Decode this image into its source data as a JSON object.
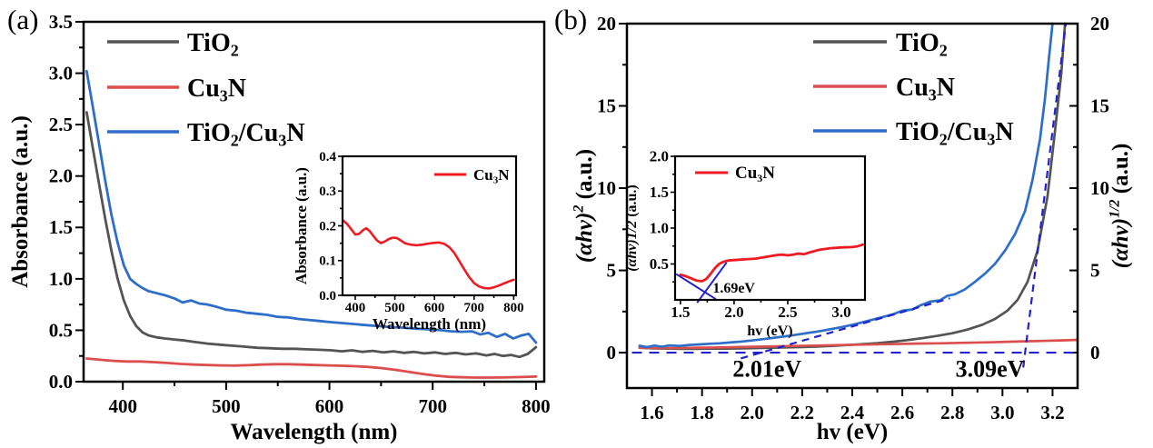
{
  "figure": {
    "panel_a_tag": "(a)",
    "panel_b_tag": "(b)"
  },
  "colors": {
    "tio2": "#545454",
    "cu3n": "#da4f4d",
    "tio2_cu3n": "#2e6ec9",
    "inset_red": "#ee1c22",
    "guide": "#2222cd",
    "axis": "#000000"
  },
  "chart_data": [
    {
      "id": "a_main",
      "type": "line",
      "xlabel": "Wavelength (nm)",
      "ylabel": "Absorbance (a.u.)",
      "xlim": [
        362,
        808
      ],
      "ylim": [
        0,
        3.5
      ],
      "xtick_labels": [
        "400",
        "500",
        "600",
        "700",
        "800"
      ],
      "ytick_labels": [
        "0.0",
        "0.5",
        "1.0",
        "1.5",
        "2.0",
        "2.5",
        "3.0",
        "3.5"
      ],
      "legend": [
        {
          "label": "TiO2",
          "color": "tio2",
          "parts": [
            {
              "t": "TiO"
            },
            {
              "t": "2",
              "s": "sub"
            }
          ]
        },
        {
          "label": "Cu3N",
          "color": "cu3n",
          "parts": [
            {
              "t": "Cu"
            },
            {
              "t": "3",
              "s": "sub"
            },
            {
              "t": "N"
            }
          ]
        },
        {
          "label": "TiO2/Cu3N",
          "color": "tio2_cu3n",
          "parts": [
            {
              "t": "TiO"
            },
            {
              "t": "2",
              "s": "sub"
            },
            {
              "t": "/Cu"
            },
            {
              "t": "3",
              "s": "sub"
            },
            {
              "t": "N"
            }
          ]
        }
      ],
      "series": [
        {
          "name": "TiO2",
          "color": "tio2",
          "x": [
            365,
            371,
            377,
            383,
            389,
            395,
            401,
            407,
            413,
            419,
            425,
            433,
            441,
            450,
            460,
            470,
            482,
            494,
            506,
            518,
            530,
            542,
            554,
            566,
            578,
            590,
            602,
            612,
            622,
            632,
            642,
            652,
            662,
            672,
            682,
            692,
            702,
            712,
            722,
            732,
            742,
            752,
            760,
            768,
            776,
            784,
            792,
            800
          ],
          "y": [
            2.62,
            2.27,
            1.92,
            1.58,
            1.27,
            1.0,
            0.79,
            0.64,
            0.54,
            0.48,
            0.45,
            0.43,
            0.42,
            0.41,
            0.4,
            0.385,
            0.37,
            0.36,
            0.35,
            0.34,
            0.33,
            0.325,
            0.32,
            0.32,
            0.315,
            0.31,
            0.305,
            0.295,
            0.305,
            0.29,
            0.3,
            0.285,
            0.295,
            0.28,
            0.29,
            0.275,
            0.285,
            0.27,
            0.28,
            0.265,
            0.275,
            0.255,
            0.27,
            0.25,
            0.26,
            0.24,
            0.27,
            0.335
          ]
        },
        {
          "name": "Cu3N",
          "color": "cu3n",
          "x": [
            365,
            378,
            391,
            404,
            417,
            430,
            443,
            456,
            469,
            482,
            495,
            508,
            521,
            534,
            547,
            560,
            573,
            586,
            599,
            612,
            625,
            638,
            651,
            664,
            677,
            690,
            703,
            716,
            729,
            742,
            755,
            768,
            781,
            794,
            800
          ],
          "y": [
            0.225,
            0.213,
            0.202,
            0.196,
            0.196,
            0.19,
            0.182,
            0.172,
            0.166,
            0.162,
            0.158,
            0.156,
            0.16,
            0.166,
            0.17,
            0.17,
            0.166,
            0.162,
            0.158,
            0.155,
            0.15,
            0.143,
            0.132,
            0.115,
            0.095,
            0.075,
            0.058,
            0.047,
            0.042,
            0.04,
            0.04,
            0.041,
            0.044,
            0.048,
            0.05
          ]
        },
        {
          "name": "TiO2/Cu3N",
          "color": "tio2_cu3n",
          "x": [
            365,
            371,
            377,
            383,
            389,
            395,
            401,
            407,
            413,
            419,
            425,
            433,
            441,
            450,
            458,
            466,
            474,
            482,
            490,
            500,
            510,
            520,
            530,
            540,
            550,
            560,
            570,
            580,
            590,
            600,
            612,
            624,
            636,
            648,
            660,
            672,
            684,
            696,
            708,
            718,
            728,
            738,
            746,
            754,
            762,
            770,
            778,
            786,
            793,
            800
          ],
          "y": [
            3.02,
            2.67,
            2.31,
            1.95,
            1.62,
            1.35,
            1.13,
            1.0,
            0.95,
            0.91,
            0.88,
            0.86,
            0.84,
            0.81,
            0.77,
            0.79,
            0.76,
            0.75,
            0.73,
            0.7,
            0.69,
            0.67,
            0.66,
            0.65,
            0.63,
            0.625,
            0.61,
            0.6,
            0.59,
            0.58,
            0.57,
            0.56,
            0.55,
            0.54,
            0.53,
            0.525,
            0.515,
            0.51,
            0.5,
            0.49,
            0.485,
            0.49,
            0.46,
            0.475,
            0.435,
            0.465,
            0.42,
            0.45,
            0.465,
            0.38
          ]
        }
      ]
    },
    {
      "id": "a_inset",
      "type": "line",
      "xlabel": "Wavelength (nm)",
      "ylabel": "Absorbance (a.u.)",
      "xlim": [
        368,
        806
      ],
      "ylim": [
        0,
        0.4
      ],
      "xtick_labels": [
        "400",
        "500",
        "600",
        "700",
        "800"
      ],
      "ytick_labels": [
        "0.0",
        "0.1",
        "0.2",
        "0.3",
        "0.4"
      ],
      "legend": [
        {
          "label": "Cu3N",
          "color": "inset_red",
          "parts": [
            {
              "t": "Cu"
            },
            {
              "t": "3",
              "s": "sub"
            },
            {
              "t": "N"
            }
          ]
        }
      ],
      "series": [
        {
          "name": "Cu3N",
          "color": "inset_red",
          "x": [
            370,
            380,
            390,
            400,
            410,
            420,
            428,
            436,
            445,
            455,
            465,
            475,
            485,
            495,
            505,
            515,
            525,
            540,
            555,
            570,
            585,
            600,
            612,
            625,
            638,
            650,
            662,
            675,
            688,
            700,
            712,
            725,
            738,
            750,
            762,
            775,
            788,
            800
          ],
          "y": [
            0.215,
            0.205,
            0.19,
            0.175,
            0.177,
            0.188,
            0.193,
            0.185,
            0.172,
            0.158,
            0.15,
            0.155,
            0.162,
            0.166,
            0.165,
            0.158,
            0.15,
            0.146,
            0.144,
            0.146,
            0.149,
            0.151,
            0.152,
            0.148,
            0.138,
            0.122,
            0.1,
            0.075,
            0.052,
            0.035,
            0.026,
            0.021,
            0.02,
            0.023,
            0.028,
            0.034,
            0.04,
            0.045
          ]
        }
      ]
    },
    {
      "id": "b_main",
      "type": "line",
      "xlabel": "hv (eV)",
      "ylabel": "(αhv)2 (a.u.)",
      "ylabel_parts": [
        {
          "t": "(αhv)",
          "s": "i"
        },
        {
          "t": "2",
          "s": "i sup"
        },
        {
          "t": " (a.u.)"
        }
      ],
      "ylabel_right": "(αhv)1/2 (a.u.)",
      "ylabel_right_parts": [
        {
          "t": "(αhv)",
          "s": "i"
        },
        {
          "t": "1/2",
          "s": "i sup"
        },
        {
          "t": " (a.u.)"
        }
      ],
      "xlim": [
        1.5,
        3.3
      ],
      "ylim": [
        0,
        20
      ],
      "xtick_labels": [
        "1.6",
        "1.8",
        "2.0",
        "2.2",
        "2.4",
        "2.6",
        "2.8",
        "3.0",
        "3.2"
      ],
      "ytick_labels": [
        "0",
        "5",
        "10",
        "15",
        "20"
      ],
      "ytick_labels_right": [
        "0",
        "5",
        "10",
        "15",
        "20"
      ],
      "legend": [
        {
          "label": "TiO2",
          "color": "tio2",
          "parts": [
            {
              "t": "TiO"
            },
            {
              "t": "2",
              "s": "sub"
            }
          ]
        },
        {
          "label": "Cu3N",
          "color": "cu3n",
          "parts": [
            {
              "t": "Cu"
            },
            {
              "t": "3",
              "s": "sub"
            },
            {
              "t": "N"
            }
          ]
        },
        {
          "label": "TiO2/Cu3N",
          "color": "tio2_cu3n",
          "parts": [
            {
              "t": "TiO"
            },
            {
              "t": "2",
              "s": "sub"
            },
            {
              "t": "/Cu"
            },
            {
              "t": "3",
              "s": "sub"
            },
            {
              "t": "N"
            }
          ]
        }
      ],
      "series": [
        {
          "name": "TiO2",
          "color": "tio2",
          "x": [
            1.55,
            1.6,
            1.66,
            1.72,
            1.78,
            1.84,
            1.9,
            1.96,
            2.02,
            2.08,
            2.14,
            2.2,
            2.26,
            2.32,
            2.38,
            2.44,
            2.5,
            2.56,
            2.62,
            2.68,
            2.74,
            2.8,
            2.86,
            2.92,
            2.97,
            3.02,
            3.06,
            3.1,
            3.14,
            3.18,
            3.21,
            3.235,
            3.25
          ],
          "y": [
            0.3,
            0.26,
            0.24,
            0.23,
            0.23,
            0.24,
            0.25,
            0.26,
            0.28,
            0.3,
            0.32,
            0.34,
            0.37,
            0.41,
            0.46,
            0.52,
            0.58,
            0.66,
            0.76,
            0.88,
            1.02,
            1.18,
            1.4,
            1.7,
            2.05,
            2.55,
            3.2,
            4.3,
            6.2,
            9.5,
            13.5,
            17,
            20
          ]
        },
        {
          "name": "Cu3N",
          "color": "cu3n",
          "x": [
            1.55,
            1.65,
            1.75,
            1.85,
            1.95,
            2.05,
            2.15,
            2.25,
            2.35,
            2.45,
            2.55,
            2.65,
            2.75,
            2.85,
            2.95,
            3.05,
            3.15,
            3.25,
            3.3
          ],
          "y": [
            0.29,
            0.27,
            0.29,
            0.31,
            0.34,
            0.37,
            0.4,
            0.43,
            0.46,
            0.49,
            0.52,
            0.55,
            0.57,
            0.6,
            0.63,
            0.67,
            0.71,
            0.75,
            0.78
          ]
        },
        {
          "name": "TiO2/Cu3N",
          "color": "tio2_cu3n",
          "x": [
            1.55,
            1.58,
            1.61,
            1.64,
            1.67,
            1.71,
            1.75,
            1.79,
            1.83,
            1.87,
            1.91,
            1.96,
            2.01,
            2.06,
            2.11,
            2.16,
            2.21,
            2.26,
            2.31,
            2.36,
            2.41,
            2.46,
            2.51,
            2.56,
            2.6,
            2.64,
            2.67,
            2.71,
            2.75,
            2.78,
            2.81,
            2.85,
            2.89,
            2.93,
            2.97,
            3.01,
            3.05,
            3.09,
            3.12,
            3.15,
            3.17,
            3.185,
            3.2
          ],
          "y": [
            0.42,
            0.34,
            0.43,
            0.36,
            0.44,
            0.41,
            0.47,
            0.5,
            0.54,
            0.57,
            0.62,
            0.68,
            0.76,
            0.85,
            0.95,
            1.05,
            1.17,
            1.28,
            1.42,
            1.56,
            1.73,
            1.92,
            2.12,
            2.32,
            2.55,
            2.62,
            2.86,
            3.1,
            3.18,
            3.45,
            3.55,
            3.85,
            4.3,
            4.8,
            5.4,
            6.2,
            7.2,
            8.6,
            10.5,
            13.0,
            15.5,
            17.8,
            20
          ]
        }
      ],
      "guides": [
        {
          "name": "zero-baseline",
          "x1": 1.52,
          "y1": 0,
          "x2": 3.295,
          "y2": 0,
          "dash": "11,8"
        },
        {
          "name": "tauc-line-tio2-cu3n",
          "x1": 1.955,
          "y1": -0.35,
          "x2": 2.79,
          "y2": 3.3,
          "dash": "8,6"
        },
        {
          "name": "tauc-line-tio2",
          "x1": 3.083,
          "y1": -0.9,
          "x2": 3.253,
          "y2": 20,
          "dash": "8,6"
        }
      ],
      "annotations": [
        {
          "text": "2.01eV",
          "x": 2.06,
          "y": -1.45,
          "anchor": "middle"
        },
        {
          "text": "3.09eV",
          "x": 2.95,
          "y": -1.45,
          "anchor": "middle"
        }
      ]
    },
    {
      "id": "b_inset",
      "type": "line",
      "xlabel": "hv (eV)",
      "ylabel": "(αhv)1/2 (a.u.)",
      "ylabel_parts": [
        {
          "t": "(αhv)",
          "s": "i"
        },
        {
          "t": "1/2",
          "s": "i"
        },
        {
          "t": " (a.u.)"
        }
      ],
      "xlim": [
        1.45,
        3.22
      ],
      "ylim": [
        0,
        2.0
      ],
      "xtick_labels": [
        "1.5",
        "2.0",
        "2.5",
        "3.0"
      ],
      "ytick_labels": [
        "0.5",
        "1.0",
        "1.5",
        "2.0"
      ],
      "legend": [
        {
          "label": "Cu3N",
          "color": "inset_red",
          "parts": [
            {
              "t": "Cu"
            },
            {
              "t": "3",
              "s": "sub"
            },
            {
              "t": "N"
            }
          ]
        }
      ],
      "series": [
        {
          "name": "Cu3N",
          "color": "inset_red",
          "x": [
            1.5,
            1.55,
            1.6,
            1.65,
            1.7,
            1.74,
            1.78,
            1.82,
            1.86,
            1.9,
            1.95,
            2.0,
            2.05,
            2.1,
            2.2,
            2.3,
            2.4,
            2.45,
            2.5,
            2.55,
            2.6,
            2.65,
            2.7,
            2.8,
            2.9,
            3.0,
            3.1,
            3.15,
            3.2
          ],
          "y": [
            0.35,
            0.33,
            0.3,
            0.27,
            0.26,
            0.29,
            0.36,
            0.44,
            0.5,
            0.53,
            0.55,
            0.555,
            0.56,
            0.565,
            0.575,
            0.6,
            0.625,
            0.63,
            0.62,
            0.63,
            0.645,
            0.635,
            0.66,
            0.7,
            0.72,
            0.73,
            0.735,
            0.745,
            0.77
          ]
        }
      ],
      "guides": [
        {
          "name": "extrapolation-left",
          "x1": 1.46,
          "y1": 0.36,
          "x2": 1.83,
          "y2": 0.01,
          "dash": ""
        },
        {
          "name": "extrapolation-right",
          "x1": 1.655,
          "y1": -0.04,
          "x2": 1.93,
          "y2": 0.52,
          "dash": ""
        }
      ],
      "annotations": [
        {
          "text": "1.69eV",
          "x": 1.8,
          "y": 0.1,
          "anchor": "start"
        }
      ]
    }
  ]
}
